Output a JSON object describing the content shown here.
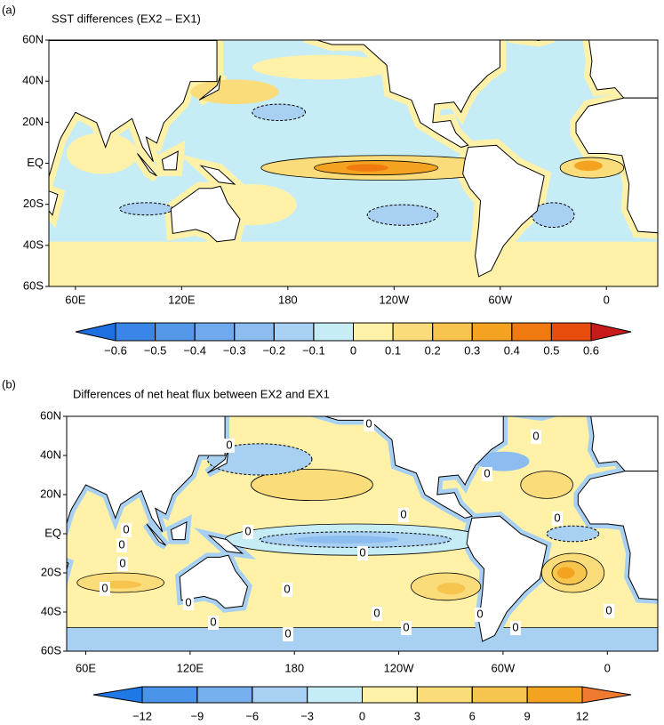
{
  "panels": [
    {
      "label": "(a)",
      "title": "SST differences (EX2 – EX1)",
      "xlim": [
        45,
        389
      ],
      "ylim": [
        -60,
        60
      ],
      "lat_ticks": [
        {
          "value": 60,
          "label": "60N"
        },
        {
          "value": 40,
          "label": "40N"
        },
        {
          "value": 20,
          "label": "20N"
        },
        {
          "value": 0,
          "label": "EQ"
        },
        {
          "value": -20,
          "label": "20S"
        },
        {
          "value": -40,
          "label": "40S"
        },
        {
          "value": -60,
          "label": "60S"
        }
      ],
      "lon_ticks": [
        {
          "value": 60,
          "label": "60E"
        },
        {
          "value": 120,
          "label": "120E"
        },
        180,
        {
          "value": 240,
          "label": "120W"
        },
        {
          "value": 300,
          "label": "60W"
        },
        {
          "value": 360,
          "label": "0"
        }
      ],
      "colorbar": {
        "ticks": [
          {
            "value": -0.6,
            "label": "−0.6"
          },
          {
            "value": -0.5,
            "label": "−0.5"
          },
          {
            "value": -0.4,
            "label": "−0.4"
          },
          {
            "value": -0.3,
            "label": "−0.3"
          },
          {
            "value": -0.2,
            "label": "−0.2"
          },
          {
            "value": -0.1,
            "label": "−0.1"
          },
          0,
          0.1,
          0.2,
          0.3,
          0.4,
          0.5,
          0.6
        ],
        "colors": [
          "#1e6fe0",
          "#3a86e8",
          "#5598ea",
          "#70aaee",
          "#8cbcf0",
          "#a8d0f2",
          "#c6ecf5",
          "#fff2a8",
          "#fadd7a",
          "#f7c44e",
          "#f4a320",
          "#f07a10",
          "#e84c0c",
          "#c81a1a"
        ]
      }
    },
    {
      "label": "(b)",
      "title": "Differences of net heat  flux between EX2 and EX1",
      "xlim": [
        49,
        389
      ],
      "ylim": [
        -60,
        60
      ],
      "lat_ticks": [
        {
          "value": 60,
          "label": "60N"
        },
        {
          "value": 40,
          "label": "40N"
        },
        {
          "value": 20,
          "label": "20N"
        },
        {
          "value": 0,
          "label": "EQ"
        },
        {
          "value": -20,
          "label": "20S"
        },
        {
          "value": -40,
          "label": "40S"
        },
        {
          "value": -60,
          "label": "60S"
        }
      ],
      "lon_ticks": [
        {
          "value": 60,
          "label": "60E"
        },
        {
          "value": 120,
          "label": "120E"
        },
        180,
        {
          "value": 240,
          "label": "120W"
        },
        {
          "value": 300,
          "label": "60W"
        },
        {
          "value": 360,
          "label": "0"
        }
      ],
      "colorbar": {
        "ticks": [
          {
            "value": -12,
            "label": "−12"
          },
          {
            "value": -9,
            "label": "−9"
          },
          {
            "value": -6,
            "label": "−6"
          },
          {
            "value": -3,
            "label": "−3"
          },
          0,
          3,
          6,
          9,
          12
        ],
        "colors": [
          "#1e78e6",
          "#4a94ea",
          "#76b0ee",
          "#a8d0f2",
          "#c6ecf5",
          "#fff2a8",
          "#fadd7a",
          "#f7c44e",
          "#f4a320",
          "#f07a30"
        ]
      },
      "contour_labels": [
        "0",
        "0",
        "0",
        "0",
        "0",
        "0",
        "0",
        "0",
        "0",
        "0",
        "0",
        "0",
        "0",
        "0",
        "0",
        "0",
        "0",
        "0",
        "0",
        "0",
        "0"
      ]
    }
  ]
}
